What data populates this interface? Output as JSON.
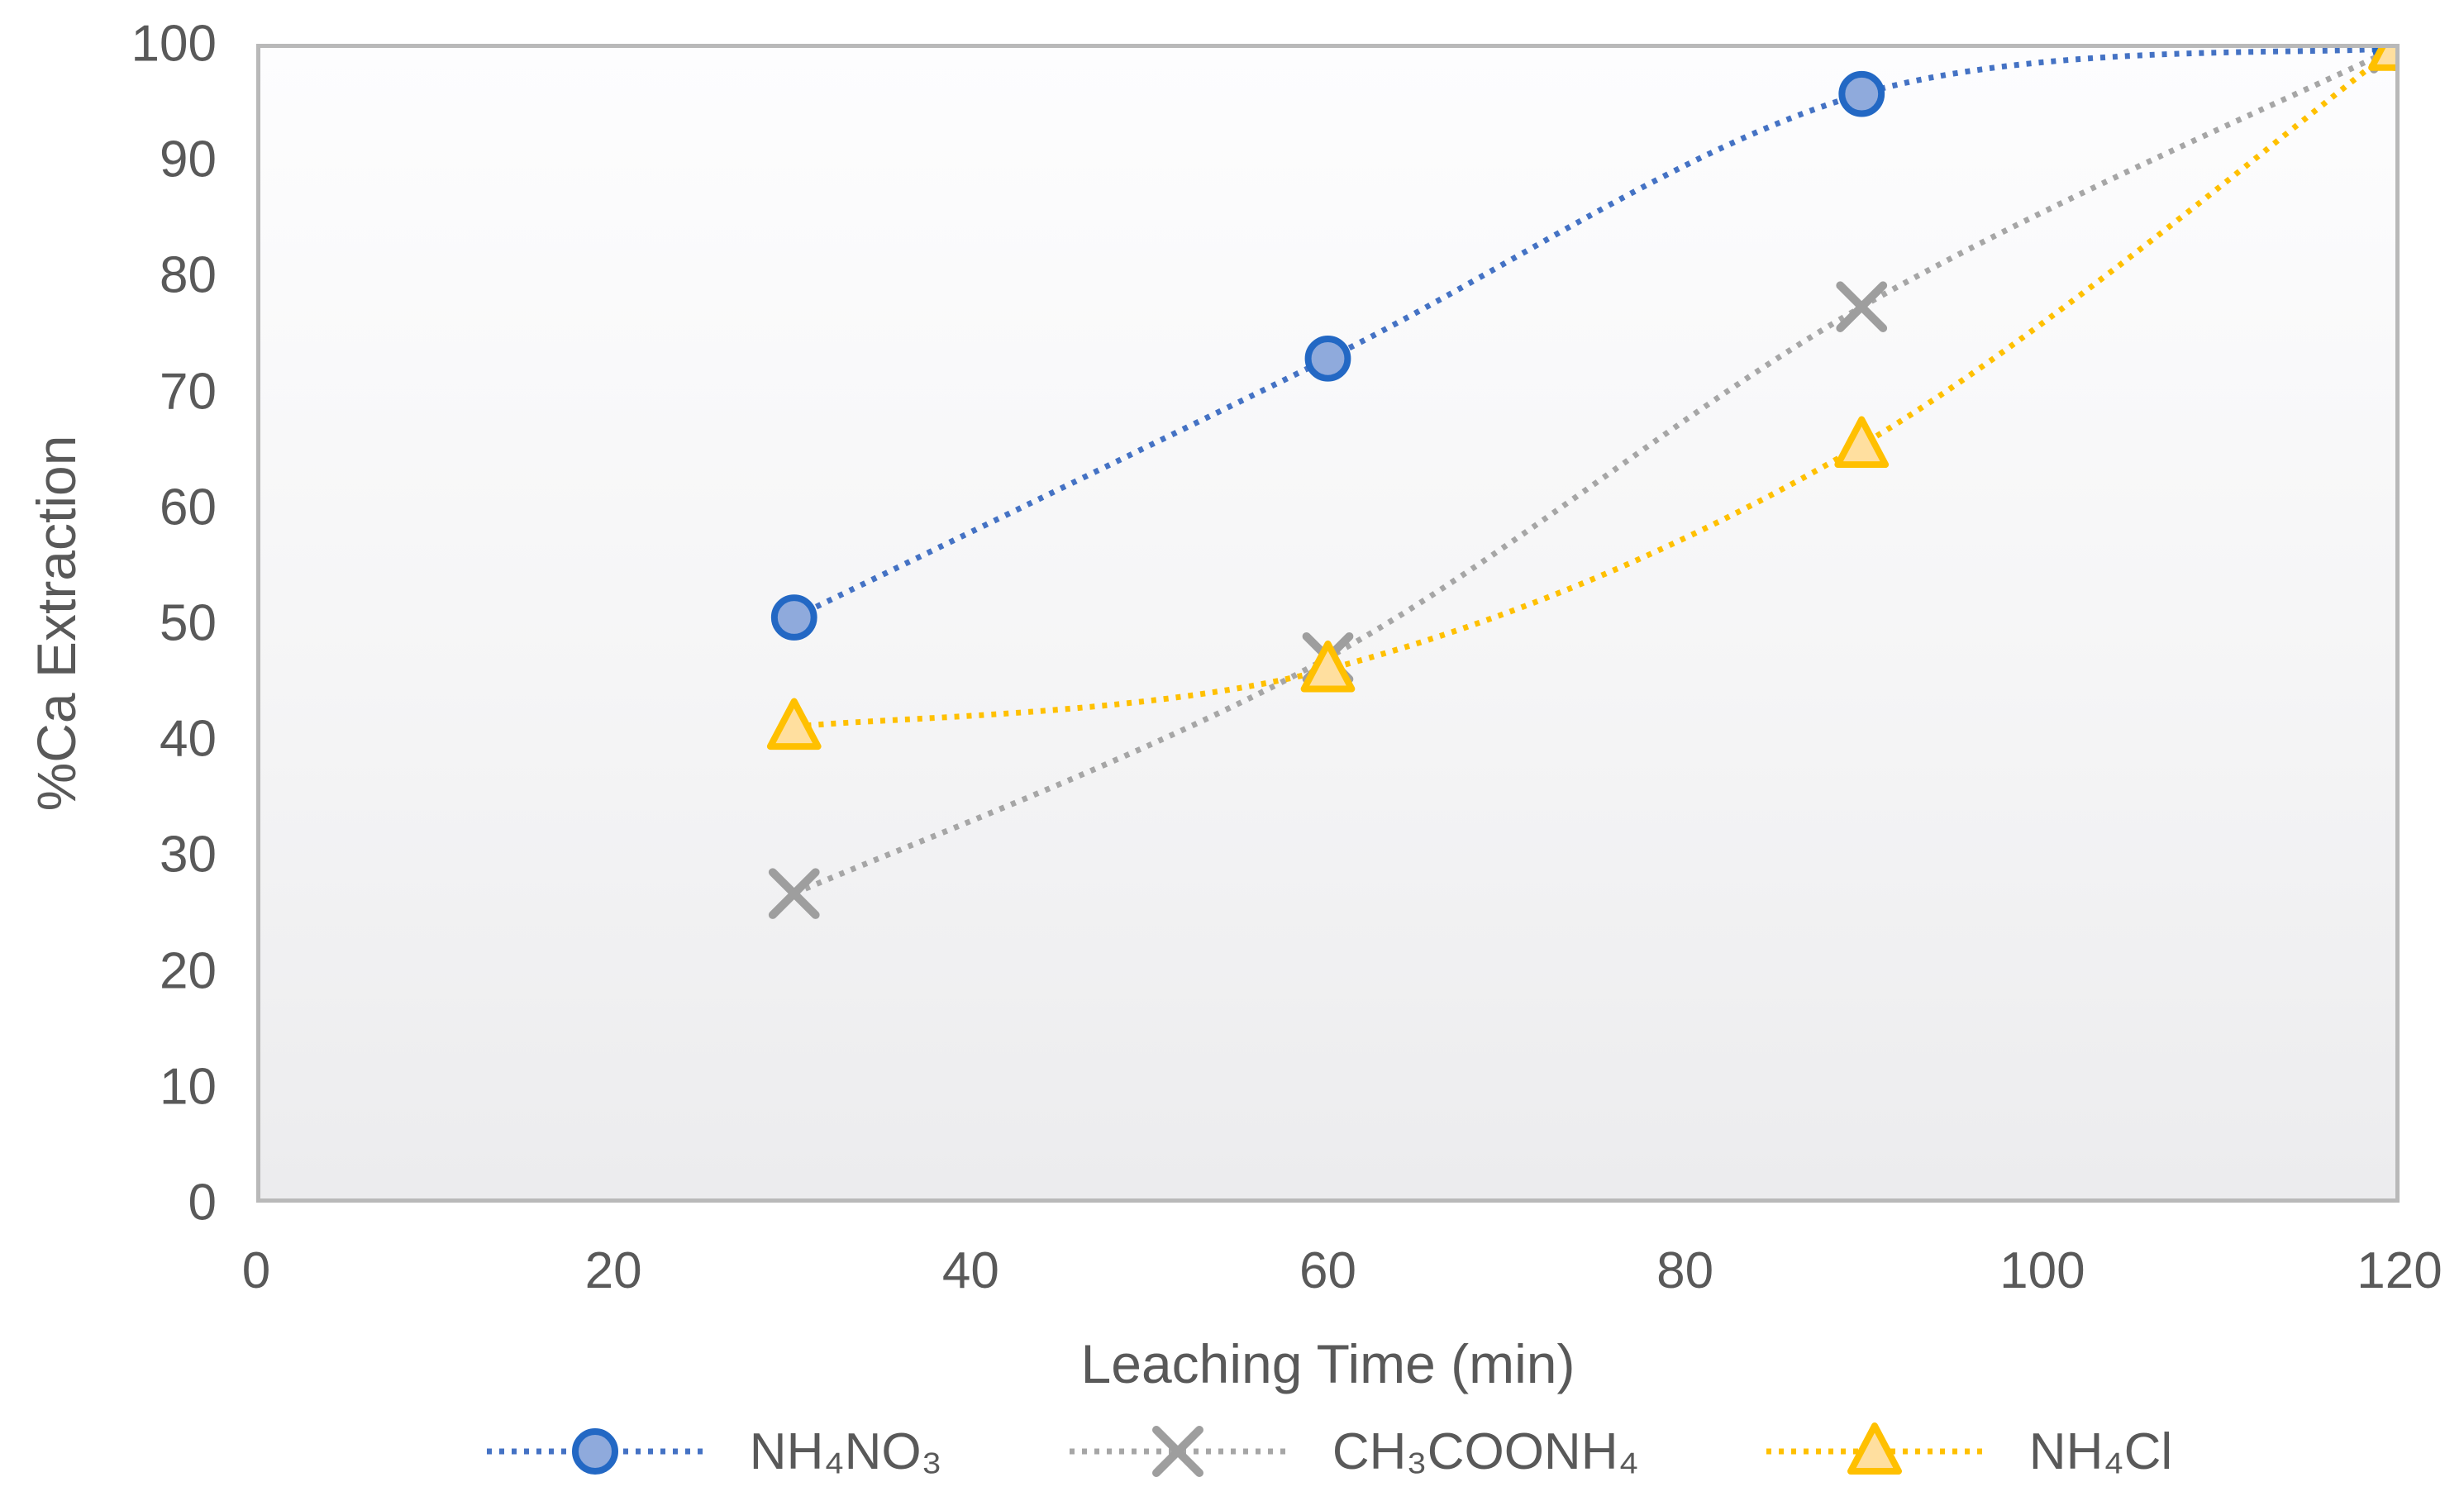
{
  "chart_data": {
    "type": "line",
    "title": "",
    "xlabel": "Leaching Time (min)",
    "ylabel": "%Ca Extraction",
    "xlim": [
      0,
      120
    ],
    "ylim": [
      0,
      100
    ],
    "x_ticks": [
      0,
      20,
      40,
      60,
      80,
      100,
      120
    ],
    "y_ticks": [
      0,
      10,
      20,
      30,
      40,
      50,
      60,
      70,
      80,
      90,
      100
    ],
    "grid": false,
    "legend_position": "bottom",
    "line_style": "dotted",
    "curve": "smooth",
    "x": [
      30,
      60,
      90,
      120
    ],
    "series": [
      {
        "name": "NH₄NO₃",
        "marker": "circle",
        "color": "#4472C4",
        "marker_fill": "#8FAADC",
        "marker_stroke": "#2368C4",
        "values": [
          50.5,
          73,
          96,
          100
        ]
      },
      {
        "name": "CH₃COONH₄",
        "marker": "x",
        "color": "#A6A6A6",
        "marker_fill": "none",
        "marker_stroke": "#9E9E9E",
        "values": [
          26.5,
          47,
          77.5,
          100
        ]
      },
      {
        "name": "NH₄Cl",
        "marker": "triangle",
        "color": "#FFC000",
        "marker_fill": "#FFDF9F",
        "marker_stroke": "#FFC000",
        "values": [
          41,
          46,
          65.5,
          100
        ]
      }
    ],
    "styles": {
      "text_color": "#595959",
      "plot_border_color": "#b9b9b9",
      "plot_background_top": "#fdfdfe",
      "plot_background_bottom": "#ececee"
    }
  }
}
